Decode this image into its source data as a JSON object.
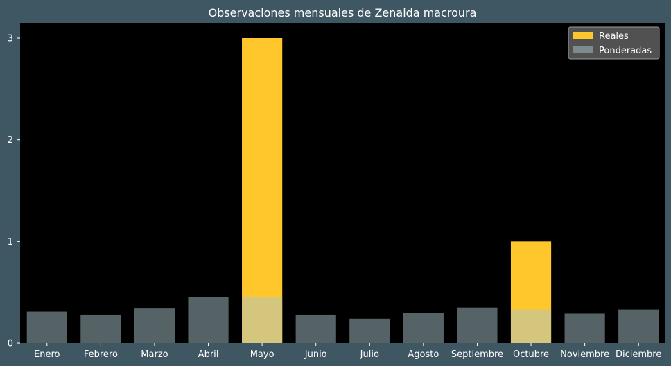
{
  "chart_data": {
    "type": "bar",
    "title": "Observaciones mensuales de Zenaida macroura",
    "xlabel": "",
    "ylabel": "",
    "ylim": [
      0,
      3.15
    ],
    "yticks": [
      0,
      1,
      2,
      3
    ],
    "grid": false,
    "legend_position": "top-right",
    "categories": [
      "Enero",
      "Febrero",
      "Marzo",
      "Abril",
      "Mayo",
      "Junio",
      "Julio",
      "Agosto",
      "Septiembre",
      "Octubre",
      "Noviembre",
      "Diciembre"
    ],
    "series": [
      {
        "name": "Reales",
        "color": "#ffc72c",
        "opacity": 1,
        "values": [
          0,
          0,
          0,
          0,
          3,
          0,
          0,
          0,
          0,
          1,
          0,
          0
        ]
      },
      {
        "name": "Ponderadas",
        "color": "#a9c5cb",
        "opacity": 0.5,
        "values": [
          0.31,
          0.28,
          0.34,
          0.45,
          0.45,
          0.28,
          0.24,
          0.3,
          0.35,
          0.33,
          0.29,
          0.33
        ]
      }
    ]
  },
  "colors": {
    "background": "#3f5763",
    "plot_background": "#000000",
    "text": "#ffffff",
    "legend_background": "#5a5a5a"
  }
}
